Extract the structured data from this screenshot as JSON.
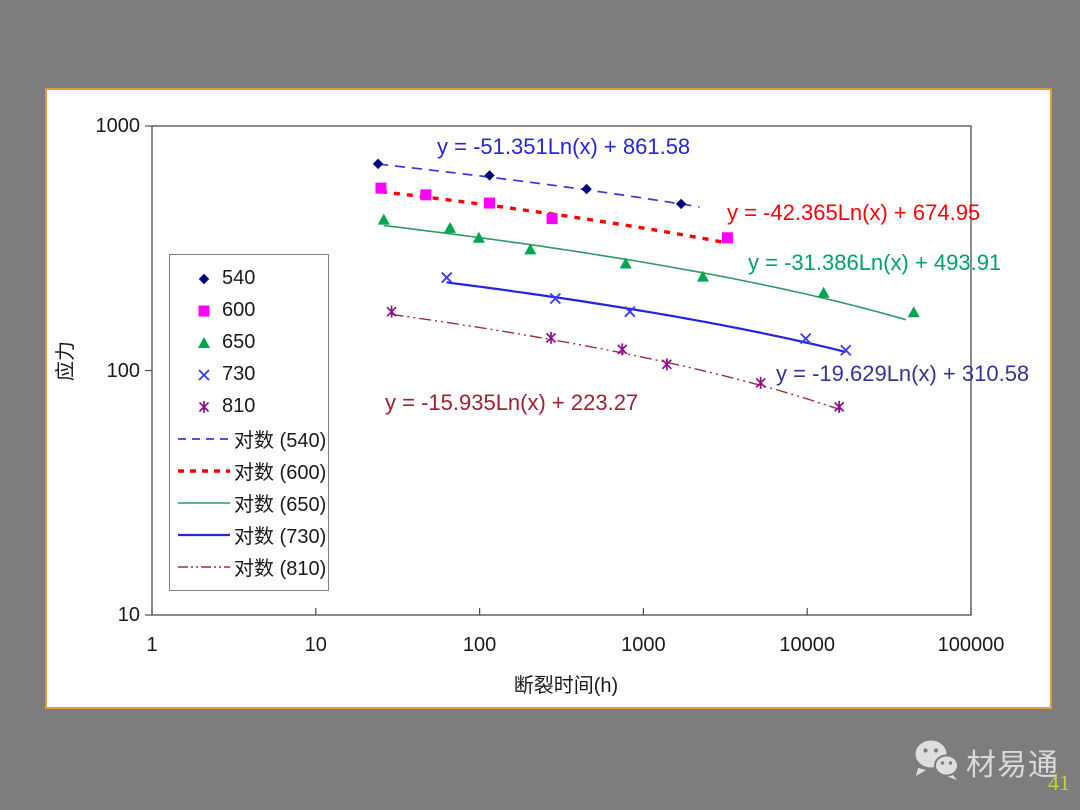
{
  "page": {
    "background_color": "#7d7d7d",
    "panel_border_color": "#dc9c40",
    "panel_background": "#ffffff"
  },
  "watermark": {
    "brand": "材易通",
    "page_number": "41",
    "icon": "wechat-icon",
    "brand_color": "#d9d9d9",
    "page_number_color": "#c9d02e"
  },
  "chart_data": {
    "type": "scatter",
    "title": "",
    "xlabel": "断裂时间(h)",
    "ylabel": "应力",
    "x_scale": "log",
    "y_scale": "log",
    "xlim": [
      1,
      100000
    ],
    "ylim": [
      10,
      1000
    ],
    "x_ticks": [
      "1",
      "10",
      "100",
      "1000",
      "10000",
      "100000"
    ],
    "y_ticks": [
      "1000",
      "100",
      "10"
    ],
    "grid": false,
    "legend_position": "middle-left",
    "series": [
      {
        "name": "540",
        "marker": "diamond",
        "color": "#000080",
        "points": [
          [
            24,
            700
          ],
          [
            115,
            628
          ],
          [
            450,
            552
          ],
          [
            1700,
            480
          ]
        ]
      },
      {
        "name": "600",
        "marker": "square",
        "color": "#ff00ff",
        "points": [
          [
            25,
            557
          ],
          [
            47,
            523
          ],
          [
            115,
            484
          ],
          [
            277,
            418
          ],
          [
            3260,
            349
          ]
        ]
      },
      {
        "name": "650",
        "marker": "triangle",
        "color": "#00a550",
        "points": [
          [
            26,
            414
          ],
          [
            66,
            383
          ],
          [
            99,
            349
          ],
          [
            204,
            313
          ],
          [
            780,
            274
          ],
          [
            2310,
            242
          ],
          [
            12600,
            208
          ],
          [
            44700,
            173
          ]
        ]
      },
      {
        "name": "730",
        "marker": "x",
        "color": "#3c3cf0",
        "points": [
          [
            63,
            240
          ],
          [
            290,
            197
          ],
          [
            827,
            174
          ],
          [
            9800,
            135
          ],
          [
            17200,
            121
          ]
        ]
      },
      {
        "name": "810",
        "marker": "asterisk",
        "color": "#8f0e8f",
        "points": [
          [
            29,
            174
          ],
          [
            273,
            136
          ],
          [
            743,
            122
          ],
          [
            1390,
            106
          ],
          [
            5200,
            89
          ],
          [
            15670,
            71
          ]
        ]
      }
    ],
    "trendlines": [
      {
        "name": "对数 (540)",
        "model": "y = a*Ln(x) + b",
        "a": -51.351,
        "b": 861.58,
        "x_start": 24,
        "x_end": 2200,
        "color": "#3a3ad1",
        "dash": "10,7",
        "width": 1.7
      },
      {
        "name": "对数 (600)",
        "model": "y = a*Ln(x) + b",
        "a": -42.365,
        "b": 674.95,
        "x_start": 25,
        "x_end": 3100,
        "color": "#ff0000",
        "dash": "6,7",
        "width": 3.4
      },
      {
        "name": "对数 (650)",
        "model": "y = a*Ln(x) + b",
        "a": -31.386,
        "b": 493.91,
        "x_start": 26,
        "x_end": 40000,
        "color": "#2e9966",
        "dash": "",
        "width": 1.6
      },
      {
        "name": "对数 (730)",
        "model": "y = a*Ln(x) + b",
        "a": -19.629,
        "b": 310.58,
        "x_start": 63,
        "x_end": 17200,
        "color": "#2323e0",
        "dash": "",
        "width": 2.2
      },
      {
        "name": "对数 (810)",
        "model": "y = a*Ln(x) + b",
        "a": -15.935,
        "b": 223.27,
        "x_start": 29,
        "x_end": 16000,
        "color": "#9b3038",
        "dash": "12,4,2,4,2,4",
        "width": 1.4
      }
    ],
    "equations": [
      {
        "text": "y = -51.351Ln(x) + 861.58",
        "color": "#2626d9",
        "x": 437,
        "y": 134
      },
      {
        "text": "y = -42.365Ln(x) + 674.95",
        "color": "#fb0207",
        "x": 727,
        "y": 200
      },
      {
        "text": "y = -31.386Ln(x) + 493.91",
        "color": "#00a06a",
        "x": 748,
        "y": 250
      },
      {
        "text": "y = -19.629Ln(x) + 310.58",
        "color": "#33339b",
        "x": 776,
        "y": 361
      },
      {
        "text": "y = -15.935Ln(x) + 223.27",
        "color": "#a02030",
        "x": 385,
        "y": 390
      }
    ],
    "legend": {
      "items": [
        {
          "label": "540",
          "type": "marker",
          "marker": "diamond",
          "color": "#000080"
        },
        {
          "label": "600",
          "type": "marker",
          "marker": "square",
          "color": "#ff00ff"
        },
        {
          "label": "650",
          "type": "marker",
          "marker": "triangle",
          "color": "#00a550"
        },
        {
          "label": "730",
          "type": "marker",
          "marker": "x",
          "color": "#3c3cf0"
        },
        {
          "label": "810",
          "type": "marker",
          "marker": "asterisk",
          "color": "#8f0e8f"
        },
        {
          "label": "对数 (540)",
          "type": "line",
          "color": "#3a3ad1",
          "dash": "8,6",
          "width": 1.7
        },
        {
          "label": "对数 (600)",
          "type": "line",
          "color": "#ff0000",
          "dash": "6,6",
          "width": 3.4
        },
        {
          "label": "对数 (650)",
          "type": "line",
          "color": "#2e9966",
          "dash": "",
          "width": 1.4
        },
        {
          "label": "对数 (730)",
          "type": "line",
          "color": "#2323e0",
          "dash": "",
          "width": 2.2
        },
        {
          "label": "对数 (810)",
          "type": "line",
          "color": "#9b3038",
          "dash": "10,3,2,3,2,3",
          "width": 1.4
        }
      ]
    }
  }
}
